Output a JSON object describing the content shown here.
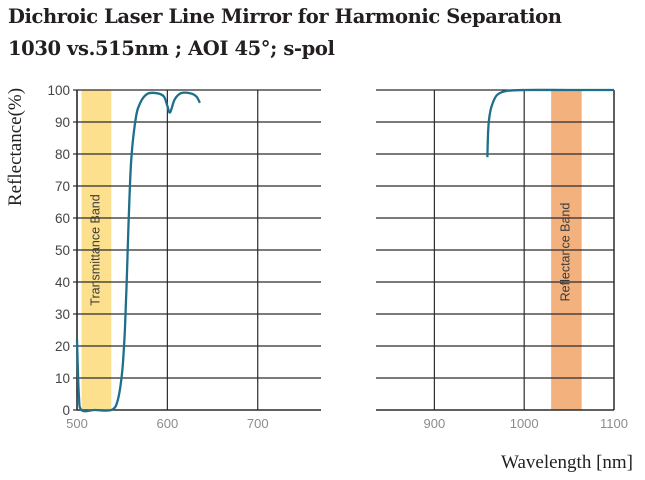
{
  "title_line1": "Dichroic Laser Line Mirror for Harmonic Separation",
  "title_line2": "1030 vs.515nm ; AOI 45°; s-pol",
  "chart_data": {
    "type": "line",
    "title": "Dichroic Laser Line Mirror for Harmonic Separation 1030 vs.515nm ; AOI 45°; s-pol",
    "xlabel": "Wavelength [nm]",
    "ylabel": "Reflectance(%)",
    "ylim": [
      0,
      100
    ],
    "yticks": [
      "0",
      "10",
      "20",
      "30",
      "40",
      "50",
      "60",
      "70",
      "80",
      "90",
      "100"
    ],
    "grid": true,
    "broken_x_axis": true,
    "panels": [
      {
        "name": "left",
        "xlim": [
          500,
          770
        ],
        "xticks": [
          "500",
          "600",
          "700"
        ],
        "band": {
          "label": "Transmittance Band",
          "x_start": 505,
          "x_end": 538,
          "color": "#fde08e"
        },
        "series": [
          {
            "name": "Reflectance",
            "color": "#1f6f8b",
            "x": [
              500,
              502,
              505,
              520,
              538,
              545,
              550,
              553,
              555,
              557,
              560,
              565,
              570,
              578,
              588,
              596,
              600,
              603,
              608,
              615,
              625,
              632,
              636
            ],
            "y": [
              22,
              5,
              0,
              0,
              0,
              3,
              12,
              25,
              40,
              58,
              78,
              91,
              96,
              98.8,
              99,
              98,
              95,
              93,
              97,
              99,
              99,
              98,
              96
            ]
          }
        ]
      },
      {
        "name": "right",
        "xlim": [
          835,
          1100
        ],
        "xticks": [
          "900",
          "1000",
          "1100"
        ],
        "band": {
          "label": "Reflectance Band",
          "x_start": 1030,
          "x_end": 1064,
          "color": "#f3b17e"
        },
        "series": [
          {
            "name": "Reflectance",
            "color": "#1f6f8b",
            "x": [
              959,
              960,
              962,
              965,
              970,
              980,
              1000,
              1050,
              1100
            ],
            "y": [
              79,
              88,
              93,
              96,
              98.5,
              99.7,
              100,
              100,
              100
            ]
          }
        ]
      }
    ]
  }
}
